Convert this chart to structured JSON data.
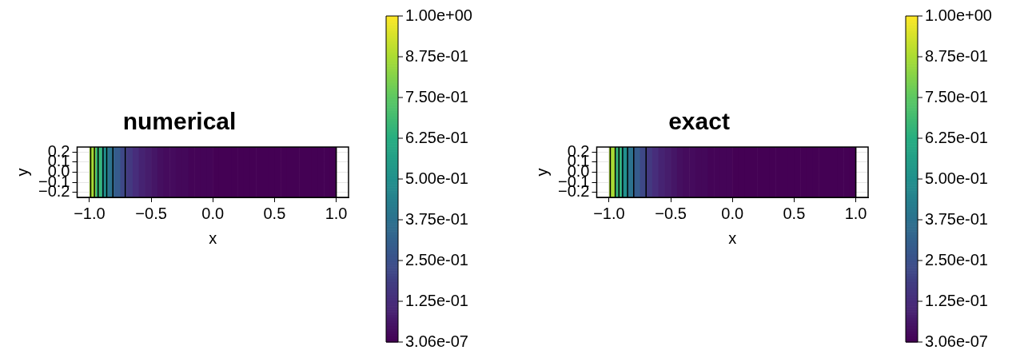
{
  "chart_data": [
    {
      "type": "heatmap",
      "title": "numerical",
      "xlabel": "x",
      "ylabel": "y",
      "x": [
        -0.975,
        -0.925,
        -0.875,
        -0.825,
        -0.775,
        -0.725,
        -0.675,
        -0.625,
        -0.575,
        -0.525,
        -0.475,
        -0.425,
        -0.375,
        -0.325,
        -0.275,
        -0.225,
        -0.175,
        -0.125,
        -0.075,
        -0.025,
        0.025,
        0.075,
        0.125,
        0.175,
        0.225,
        0.275,
        0.325,
        0.375,
        0.425,
        0.475,
        0.525,
        0.575,
        0.625,
        0.675,
        0.725,
        0.775,
        0.825,
        0.875,
        0.925,
        0.975
      ],
      "cells": [
        [
          0.87,
          0.66,
          0.5,
          0.38,
          0.29,
          0.22,
          0.17,
          0.13,
          0.1,
          0.08,
          0.06,
          0.04,
          0.03,
          0.03,
          0.02,
          0.02,
          0.01,
          0.01,
          0.01,
          0.01,
          0,
          0,
          0,
          0,
          0,
          0,
          0,
          0,
          0,
          0,
          0,
          0,
          0,
          0,
          0,
          0,
          0,
          0,
          0,
          0
        ]
      ],
      "xlim": [
        -1.1,
        1.1
      ],
      "ylim": [
        -0.25,
        0.25
      ],
      "xticks": [
        {
          "value": -1,
          "label": "−1.0"
        },
        {
          "value": -0.5,
          "label": "−0.5"
        },
        {
          "value": 0,
          "label": "0.0"
        },
        {
          "value": 0.5,
          "label": "0.5"
        },
        {
          "value": 1,
          "label": "1.0"
        }
      ],
      "yticks": [
        {
          "value": -0.2,
          "label": "−0.2"
        },
        {
          "value": -0.1,
          "label": "−0.1"
        },
        {
          "value": 0,
          "label": "0.0"
        },
        {
          "value": 0.1,
          "label": "0.1"
        },
        {
          "value": 0.2,
          "label": "0.2"
        }
      ],
      "clim": [
        3.06e-07,
        1
      ],
      "cticks": [
        {
          "value": 3.06e-07,
          "label": "3.06e-07"
        },
        {
          "value": 0.125,
          "label": "1.25e-01"
        },
        {
          "value": 0.25,
          "label": "2.50e-01"
        },
        {
          "value": 0.375,
          "label": "3.75e-01"
        },
        {
          "value": 0.5,
          "label": "5.00e-01"
        },
        {
          "value": 0.625,
          "label": "6.25e-01"
        },
        {
          "value": 0.75,
          "label": "7.50e-01"
        },
        {
          "value": 0.875,
          "label": "8.75e-01"
        },
        {
          "value": 1,
          "label": "1.00e+00"
        }
      ],
      "ref_lines": [
        {
          "axis": "x",
          "value": -0.99,
          "color": "#000000"
        },
        {
          "axis": "x",
          "value": -0.96,
          "color": "#000000"
        },
        {
          "axis": "x",
          "value": -0.93,
          "color": "#000000"
        },
        {
          "axis": "x",
          "value": -0.89,
          "color": "#000000"
        },
        {
          "axis": "x",
          "value": -0.86,
          "color": "#000000"
        },
        {
          "axis": "x",
          "value": -0.81,
          "color": "#000000"
        },
        {
          "axis": "x",
          "value": -0.71,
          "color": "#000000"
        },
        {
          "axis": "x",
          "value": 1.0,
          "color": "#000000"
        }
      ],
      "grid": true
    },
    {
      "type": "heatmap",
      "title": "exact",
      "xlabel": "x",
      "ylabel": "y",
      "x": [
        -0.975,
        -0.925,
        -0.875,
        -0.825,
        -0.775,
        -0.725,
        -0.675,
        -0.625,
        -0.575,
        -0.525,
        -0.475,
        -0.425,
        -0.375,
        -0.325,
        -0.275,
        -0.225,
        -0.175,
        -0.125,
        -0.075,
        -0.025,
        0.025,
        0.075,
        0.125,
        0.175,
        0.225,
        0.275,
        0.325,
        0.375,
        0.425,
        0.475,
        0.525,
        0.575,
        0.625,
        0.675,
        0.725,
        0.775,
        0.825,
        0.875,
        0.925,
        0.975
      ],
      "cells": [
        [
          0.87,
          0.66,
          0.5,
          0.38,
          0.29,
          0.22,
          0.17,
          0.13,
          0.1,
          0.08,
          0.06,
          0.04,
          0.03,
          0.03,
          0.02,
          0.02,
          0.01,
          0.01,
          0.01,
          0.01,
          0,
          0,
          0,
          0,
          0,
          0,
          0,
          0,
          0,
          0,
          0,
          0,
          0,
          0,
          0,
          0,
          0,
          0,
          0,
          0
        ]
      ],
      "xlim": [
        -1.1,
        1.1
      ],
      "ylim": [
        -0.25,
        0.25
      ],
      "xticks": [
        {
          "value": -1,
          "label": "−1.0"
        },
        {
          "value": -0.5,
          "label": "−0.5"
        },
        {
          "value": 0,
          "label": "0.0"
        },
        {
          "value": 0.5,
          "label": "0.5"
        },
        {
          "value": 1,
          "label": "1.0"
        }
      ],
      "yticks": [
        {
          "value": -0.2,
          "label": "−0.2"
        },
        {
          "value": -0.1,
          "label": "−0.1"
        },
        {
          "value": 0,
          "label": "0.0"
        },
        {
          "value": 0.1,
          "label": "0.1"
        },
        {
          "value": 0.2,
          "label": "0.2"
        }
      ],
      "clim": [
        3.06e-07,
        1
      ],
      "cticks": [
        {
          "value": 3.06e-07,
          "label": "3.06e-07"
        },
        {
          "value": 0.125,
          "label": "1.25e-01"
        },
        {
          "value": 0.25,
          "label": "2.50e-01"
        },
        {
          "value": 0.375,
          "label": "3.75e-01"
        },
        {
          "value": 0.5,
          "label": "5.00e-01"
        },
        {
          "value": 0.625,
          "label": "6.25e-01"
        },
        {
          "value": 0.75,
          "label": "7.50e-01"
        },
        {
          "value": 0.875,
          "label": "8.75e-01"
        },
        {
          "value": 1,
          "label": "1.00e+00"
        }
      ],
      "ref_lines": [
        {
          "axis": "x",
          "value": -0.99,
          "color": "#000000"
        },
        {
          "axis": "x",
          "value": -0.95,
          "color": "#000000"
        },
        {
          "axis": "x",
          "value": -0.92,
          "color": "#000000"
        },
        {
          "axis": "x",
          "value": -0.89,
          "color": "#000000"
        },
        {
          "axis": "x",
          "value": -0.85,
          "color": "#000000"
        },
        {
          "axis": "x",
          "value": -0.8,
          "color": "#000000"
        },
        {
          "axis": "x",
          "value": -0.7,
          "color": "#000000"
        },
        {
          "axis": "x",
          "value": 1.0,
          "color": "#000000"
        }
      ],
      "grid": true
    }
  ]
}
